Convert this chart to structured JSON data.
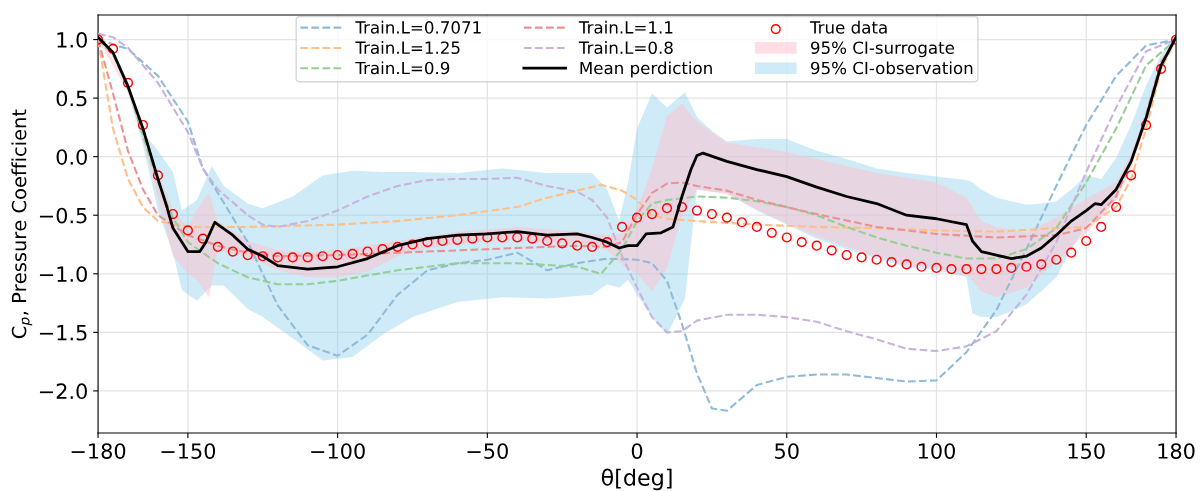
{
  "chart_data": {
    "type": "line",
    "xlabel": "θ[deg]",
    "ylabel": "C$_{p}$, Pressure Coefficient",
    "xlim": [
      -180,
      180
    ],
    "ylim": [
      -2.36,
      1.21
    ],
    "xticks": [
      {
        "value": -180,
        "label": "−180"
      },
      {
        "value": -150,
        "label": "−150"
      },
      {
        "value": -100,
        "label": "−100"
      },
      {
        "value": -50,
        "label": "−50"
      },
      0,
      50,
      100,
      150,
      180
    ],
    "yticks": [
      {
        "value": -2.0,
        "label": "−2.0"
      },
      {
        "value": -1.5,
        "label": "−1.5"
      },
      {
        "value": -1.0,
        "label": "−1.0"
      },
      {
        "value": -0.5,
        "label": "−0.5"
      },
      {
        "value": 0.0,
        "label": "0.0"
      },
      {
        "value": 0.5,
        "label": "0.5"
      },
      {
        "value": 1.0,
        "label": "1.0"
      }
    ],
    "grid": true,
    "legend": "top",
    "series": [
      {
        "name": "Train.L=0.7071",
        "line_style": "dashed",
        "color": "#8fbbd9",
        "x": [
          -180,
          -170,
          -160,
          -150,
          -145,
          -140,
          -130,
          -120,
          -110,
          -100,
          -90,
          -80,
          -70,
          -60,
          -50,
          -40,
          -30,
          -20,
          -10,
          0,
          5,
          10,
          15,
          20,
          25,
          30,
          35,
          40,
          50,
          60,
          70,
          80,
          90,
          100,
          110,
          120,
          130,
          140,
          150,
          160,
          170,
          180
        ],
        "values": [
          1.0,
          0.92,
          0.69,
          0.3,
          -0.1,
          -0.31,
          -0.73,
          -1.27,
          -1.61,
          -1.7,
          -1.52,
          -1.18,
          -0.97,
          -0.91,
          -0.88,
          -0.82,
          -0.97,
          -0.91,
          -0.87,
          -0.88,
          -0.91,
          -1.06,
          -1.43,
          -1.85,
          -2.15,
          -2.17,
          -2.06,
          -1.95,
          -1.88,
          -1.86,
          -1.86,
          -1.89,
          -1.92,
          -1.91,
          -1.67,
          -1.31,
          -0.79,
          -0.25,
          0.27,
          0.69,
          0.95,
          1.0
        ]
      },
      {
        "name": "Train.L=1.25",
        "line_style": "dashed",
        "color": "#ffbf86",
        "x": [
          -180,
          -175,
          -170,
          -165,
          -160,
          -150,
          -130,
          -100,
          -80,
          -60,
          -40,
          -30,
          -20,
          -12,
          -5,
          0,
          5,
          10,
          20,
          40,
          60,
          80,
          100,
          120,
          140,
          150,
          160,
          165,
          170,
          175,
          180
        ],
        "values": [
          1.0,
          0.24,
          -0.19,
          -0.43,
          -0.55,
          -0.6,
          -0.6,
          -0.58,
          -0.55,
          -0.5,
          -0.43,
          -0.35,
          -0.29,
          -0.24,
          -0.29,
          -0.37,
          -0.5,
          -0.53,
          -0.55,
          -0.58,
          -0.6,
          -0.61,
          -0.63,
          -0.64,
          -0.61,
          -0.6,
          -0.43,
          -0.19,
          0.24,
          0.75,
          1.0
        ]
      },
      {
        "name": "Train.L=0.9",
        "line_style": "dashed",
        "color": "#95cf95",
        "x": [
          -180,
          -175,
          -170,
          -165,
          -160,
          -155,
          -150,
          -140,
          -130,
          -120,
          -110,
          -100,
          -80,
          -60,
          -40,
          -20,
          -12,
          -5,
          0,
          5,
          10,
          20,
          30,
          40,
          50,
          60,
          70,
          80,
          90,
          100,
          110,
          120,
          130,
          140,
          150,
          160,
          170,
          180
        ],
        "values": [
          1.0,
          0.87,
          0.6,
          0.18,
          -0.22,
          -0.52,
          -0.73,
          -0.91,
          -1.03,
          -1.09,
          -1.09,
          -1.06,
          -0.97,
          -0.91,
          -0.91,
          -0.94,
          -1.0,
          -0.79,
          -0.55,
          -0.4,
          -0.37,
          -0.34,
          -0.35,
          -0.38,
          -0.43,
          -0.5,
          -0.6,
          -0.69,
          -0.76,
          -0.82,
          -0.87,
          -0.87,
          -0.79,
          -0.61,
          -0.22,
          0.24,
          0.78,
          1.0
        ]
      },
      {
        "name": "Train.L=1.1",
        "line_style": "dashed",
        "color": "#ea9293",
        "x": [
          -180,
          -175,
          -170,
          -165,
          -160,
          -150,
          -140,
          -130,
          -120,
          -100,
          -80,
          -60,
          -40,
          -20,
          -10,
          -5,
          0,
          5,
          10,
          15,
          20,
          30,
          40,
          60,
          80,
          100,
          120,
          140,
          150,
          160,
          165,
          170,
          175,
          180
        ],
        "values": [
          1.0,
          0.54,
          0.05,
          -0.28,
          -0.5,
          -0.67,
          -0.76,
          -0.82,
          -0.85,
          -0.84,
          -0.82,
          -0.8,
          -0.78,
          -0.76,
          -0.77,
          -0.73,
          -0.49,
          -0.31,
          -0.23,
          -0.22,
          -0.25,
          -0.29,
          -0.37,
          -0.49,
          -0.6,
          -0.66,
          -0.69,
          -0.67,
          -0.61,
          -0.34,
          -0.04,
          0.36,
          0.81,
          1.0
        ]
      },
      {
        "name": "Train.L=0.8",
        "line_style": "dashed",
        "color": "#c9b3de",
        "x": [
          -180,
          -175,
          -170,
          -160,
          -150,
          -145,
          -140,
          -130,
          -125,
          -120,
          -110,
          -100,
          -90,
          -80,
          -70,
          -60,
          -50,
          -40,
          -30,
          -20,
          -15,
          -10,
          -5,
          0,
          5,
          10,
          15,
          20,
          30,
          40,
          50,
          60,
          70,
          80,
          90,
          100,
          110,
          120,
          130,
          140,
          150,
          160,
          170,
          180
        ],
        "values": [
          1.05,
          1.02,
          0.93,
          0.63,
          0.21,
          -0.1,
          -0.28,
          -0.5,
          -0.58,
          -0.6,
          -0.55,
          -0.46,
          -0.34,
          -0.25,
          -0.2,
          -0.19,
          -0.19,
          -0.18,
          -0.25,
          -0.3,
          -0.37,
          -0.52,
          -0.85,
          -1.12,
          -1.37,
          -1.5,
          -1.49,
          -1.4,
          -1.35,
          -1.35,
          -1.37,
          -1.41,
          -1.49,
          -1.56,
          -1.64,
          -1.66,
          -1.62,
          -1.49,
          -1.18,
          -0.73,
          -0.13,
          0.42,
          0.9,
          1.0
        ]
      },
      {
        "name": "Mean perdiction",
        "line_style": "solid",
        "color": "#000000",
        "x": [
          -180,
          -175,
          -170,
          -165,
          -160,
          -157,
          -155,
          -150,
          -146,
          -144,
          -141,
          -135,
          -130,
          -125,
          -120,
          -110,
          -100,
          -90,
          -80,
          -70,
          -60,
          -50,
          -40,
          -30,
          -20,
          -15,
          -10,
          -6,
          -3,
          0,
          3,
          8,
          12,
          15,
          18,
          20,
          22,
          30,
          40,
          50,
          60,
          70,
          80,
          90,
          100,
          110,
          112,
          115,
          120,
          125,
          130,
          135,
          140,
          145,
          150,
          153,
          155,
          160,
          165,
          170,
          175,
          180
        ],
        "values": [
          1.02,
          0.89,
          0.6,
          0.24,
          -0.19,
          -0.43,
          -0.61,
          -0.81,
          -0.81,
          -0.73,
          -0.56,
          -0.67,
          -0.79,
          -0.85,
          -0.93,
          -0.96,
          -0.94,
          -0.87,
          -0.76,
          -0.7,
          -0.67,
          -0.66,
          -0.64,
          -0.67,
          -0.66,
          -0.69,
          -0.73,
          -0.78,
          -0.76,
          -0.76,
          -0.66,
          -0.65,
          -0.6,
          -0.34,
          -0.11,
          0.01,
          0.03,
          -0.04,
          -0.11,
          -0.17,
          -0.26,
          -0.34,
          -0.4,
          -0.5,
          -0.53,
          -0.58,
          -0.72,
          -0.81,
          -0.84,
          -0.87,
          -0.85,
          -0.78,
          -0.67,
          -0.55,
          -0.46,
          -0.4,
          -0.41,
          -0.28,
          -0.04,
          0.33,
          0.78,
          1.02
        ]
      },
      {
        "name": "True data",
        "type": "scatter",
        "marker": "circle",
        "color": "#ff0000",
        "x": [
          -180,
          -175,
          -170,
          -165,
          -160,
          -155,
          -150,
          -145,
          -140,
          -135,
          -130,
          -125,
          -120,
          -115,
          -110,
          -105,
          -100,
          -95,
          -90,
          -85,
          -80,
          -75,
          -70,
          -65,
          -60,
          -55,
          -50,
          -45,
          -40,
          -35,
          -30,
          -25,
          -20,
          -15,
          -10,
          -5,
          0,
          5,
          10,
          15,
          20,
          25,
          30,
          35,
          40,
          45,
          50,
          55,
          60,
          65,
          70,
          75,
          80,
          85,
          90,
          95,
          100,
          105,
          110,
          115,
          120,
          125,
          130,
          135,
          140,
          145,
          150,
          155,
          160,
          165,
          170,
          175,
          180
        ],
        "values": [
          1.0,
          0.92,
          0.63,
          0.27,
          -0.16,
          -0.49,
          -0.63,
          -0.7,
          -0.77,
          -0.81,
          -0.84,
          -0.85,
          -0.86,
          -0.86,
          -0.86,
          -0.85,
          -0.84,
          -0.83,
          -0.81,
          -0.79,
          -0.77,
          -0.75,
          -0.73,
          -0.72,
          -0.71,
          -0.7,
          -0.69,
          -0.69,
          -0.69,
          -0.7,
          -0.72,
          -0.74,
          -0.76,
          -0.77,
          -0.73,
          -0.6,
          -0.52,
          -0.49,
          -0.44,
          -0.43,
          -0.46,
          -0.49,
          -0.52,
          -0.56,
          -0.6,
          -0.65,
          -0.69,
          -0.73,
          -0.76,
          -0.8,
          -0.84,
          -0.86,
          -0.88,
          -0.9,
          -0.92,
          -0.94,
          -0.95,
          -0.96,
          -0.96,
          -0.96,
          -0.96,
          -0.95,
          -0.94,
          -0.92,
          -0.88,
          -0.82,
          -0.72,
          -0.6,
          -0.43,
          -0.16,
          0.27,
          0.75,
          1.0
        ]
      },
      {
        "name": "95% CI-surrogate",
        "type": "area",
        "color": "#ffc0cb",
        "x": [
          -180,
          -170,
          -165,
          -160,
          -155,
          -150,
          -147,
          -143,
          -140,
          -130,
          -120,
          -110,
          -100,
          -90,
          -80,
          -70,
          -60,
          -50,
          -40,
          -30,
          -20,
          -10,
          -5,
          0,
          5,
          10,
          15,
          20,
          30,
          40,
          50,
          60,
          70,
          80,
          90,
          100,
          110,
          115,
          120,
          130,
          140,
          150,
          160,
          165,
          170,
          175,
          180
        ],
        "values": [
          null,
          null,
          null,
          null,
          null,
          null,
          null,
          null,
          null,
          null,
          null,
          null,
          null,
          null,
          null,
          null,
          null,
          null,
          null,
          null,
          null,
          null,
          null,
          null,
          null,
          null,
          null,
          null,
          null,
          null,
          null,
          null,
          null,
          null,
          null,
          null,
          null,
          null,
          null,
          null,
          null,
          null,
          null,
          null,
          null,
          null,
          null
        ],
        "upper": [
          1.03,
          0.63,
          0.26,
          -0.15,
          -0.45,
          -0.6,
          -0.45,
          -0.31,
          -0.55,
          -0.72,
          -0.8,
          -0.82,
          -0.8,
          -0.76,
          -0.72,
          -0.68,
          -0.64,
          -0.62,
          -0.6,
          -0.62,
          -0.64,
          -0.67,
          -0.66,
          -0.45,
          -0.1,
          0.35,
          0.45,
          0.3,
          0.12,
          0.08,
          0.04,
          -0.02,
          -0.08,
          -0.14,
          -0.18,
          -0.22,
          -0.35,
          -0.55,
          -0.6,
          -0.65,
          -0.52,
          -0.36,
          -0.22,
          0.02,
          0.38,
          0.82,
          1.03
        ],
        "lower": [
          1.0,
          0.55,
          0.15,
          -0.35,
          -0.85,
          -1.0,
          -1.05,
          -1.2,
          -0.8,
          -0.85,
          -0.97,
          -1.03,
          -1.03,
          -0.98,
          -0.85,
          -0.78,
          -0.75,
          -0.72,
          -0.71,
          -0.74,
          -0.73,
          -0.8,
          -0.92,
          -1.0,
          -1.15,
          -0.95,
          -0.5,
          -0.28,
          -0.32,
          -0.45,
          -0.57,
          -0.68,
          -0.77,
          -0.85,
          -0.92,
          -0.95,
          -1.0,
          -1.15,
          -1.2,
          -1.12,
          -0.9,
          -0.65,
          -0.38,
          -0.1,
          0.28,
          0.72,
          1.0
        ]
      },
      {
        "name": "95% CI-observation",
        "type": "area",
        "color": "#87ceeb",
        "x": [
          -180,
          -175,
          -170,
          -165,
          -160,
          -155,
          -152,
          -147,
          -142,
          -138,
          -130,
          -125,
          -115,
          -105,
          -95,
          -85,
          -75,
          -60,
          -45,
          -30,
          -15,
          -10,
          -6,
          -3,
          0,
          5,
          10,
          16,
          20,
          25,
          30,
          40,
          50,
          60,
          70,
          80,
          90,
          100,
          110,
          112,
          115,
          120,
          125,
          130,
          135,
          140,
          145,
          150,
          155,
          160,
          165,
          170,
          175,
          180
        ],
        "values": [
          null,
          null,
          null,
          null,
          null,
          null,
          null,
          null,
          null,
          null,
          null,
          null,
          null,
          null,
          null,
          null,
          null,
          null,
          null,
          null,
          null,
          null,
          null,
          null,
          null,
          null,
          null,
          null,
          null,
          null,
          null,
          null,
          null,
          null,
          null,
          null,
          null,
          null,
          null,
          null,
          null,
          null,
          null,
          null,
          null,
          null,
          null,
          null,
          null,
          null,
          null,
          null,
          null,
          null
        ],
        "upper": [
          1.05,
          0.88,
          0.65,
          0.21,
          0.05,
          -0.13,
          -0.46,
          -0.37,
          -0.08,
          -0.25,
          -0.4,
          -0.44,
          -0.34,
          -0.16,
          -0.12,
          -0.13,
          -0.13,
          -0.14,
          -0.1,
          -0.14,
          -0.14,
          -0.28,
          -0.55,
          -0.22,
          0.24,
          0.54,
          0.42,
          0.55,
          0.34,
          0.22,
          0.13,
          0.15,
          0.15,
          0.05,
          -0.02,
          -0.1,
          -0.14,
          -0.17,
          -0.2,
          -0.22,
          -0.28,
          -0.35,
          -0.38,
          -0.41,
          -0.4,
          -0.38,
          -0.28,
          -0.16,
          -0.19,
          -0.01,
          0.27,
          0.61,
          0.87,
          1.05
        ],
        "lower": [
          1.0,
          0.85,
          0.55,
          0.1,
          -0.46,
          -0.82,
          -1.14,
          -1.23,
          -1.1,
          -1.1,
          -1.3,
          -1.37,
          -1.55,
          -1.74,
          -1.71,
          -1.52,
          -1.37,
          -1.24,
          -1.2,
          -1.21,
          -1.18,
          -1.09,
          -1.12,
          -1.05,
          -1.18,
          -1.37,
          -1.52,
          -1.21,
          -0.28,
          -0.3,
          -0.31,
          -0.46,
          -0.58,
          -0.7,
          -0.79,
          -0.87,
          -0.94,
          -0.97,
          -1.03,
          -1.34,
          -1.37,
          -1.37,
          -1.32,
          -1.26,
          -1.15,
          -1.03,
          -0.79,
          -0.58,
          -0.49,
          -0.34,
          -0.07,
          0.3,
          0.73,
          1.0
        ]
      }
    ]
  }
}
